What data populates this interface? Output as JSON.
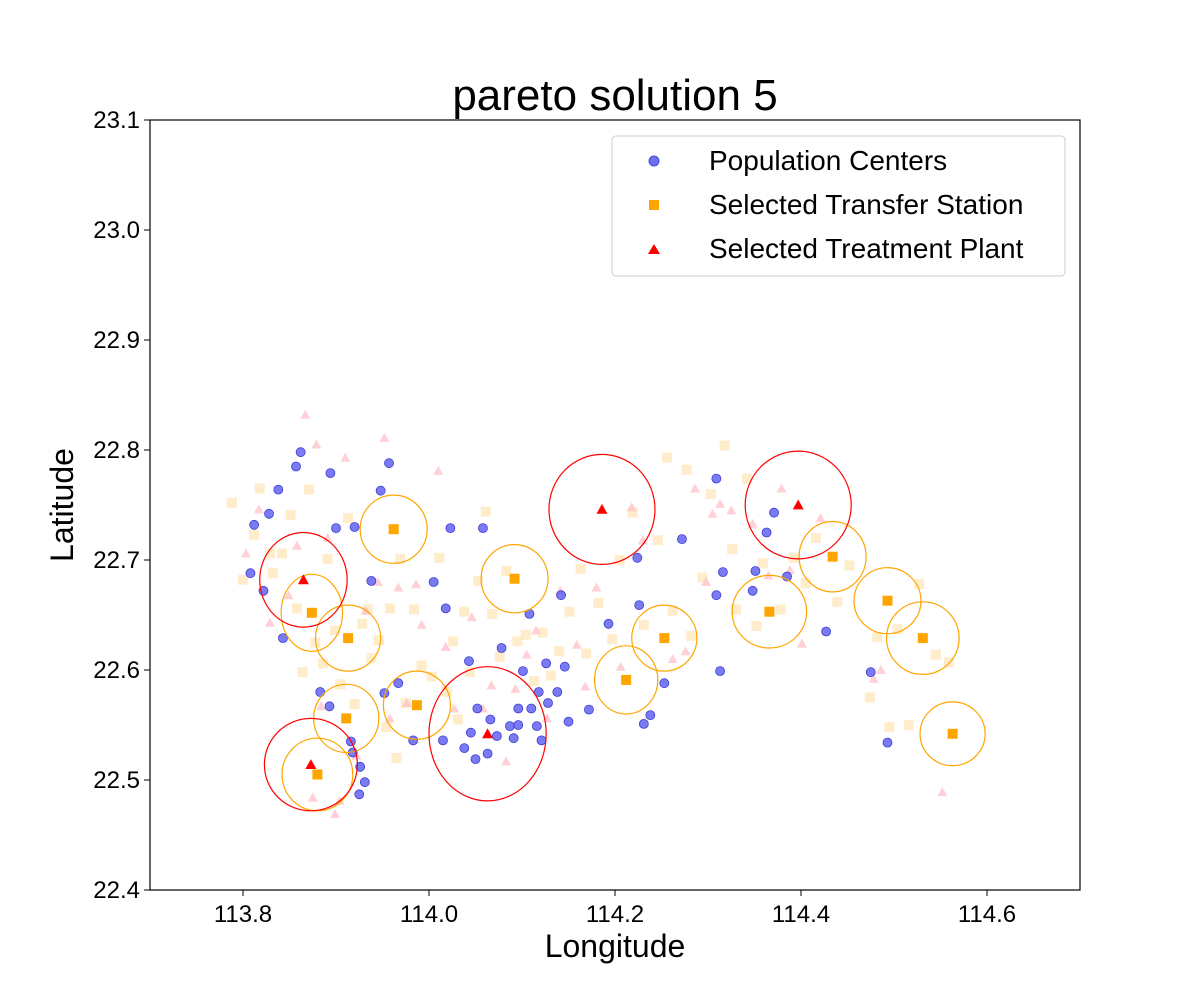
{
  "chart_data": {
    "type": "scatter",
    "title": "pareto solution 5",
    "xlabel": "Longitude",
    "ylabel": "Latitude",
    "xlim": [
      113.7,
      114.7
    ],
    "ylim": [
      22.4,
      23.1
    ],
    "xticks": [
      "113.8",
      "114.0",
      "114.2",
      "114.4",
      "114.6"
    ],
    "yticks": [
      "22.4",
      "22.5",
      "22.6",
      "22.7",
      "22.8",
      "22.9",
      "23.0",
      "23.1"
    ],
    "grid": false,
    "legend_position": "top-right",
    "legend": [
      {
        "label": "Population Centers",
        "marker": "circle",
        "color": "#6f6ff0"
      },
      {
        "label": "Selected Transfer Station",
        "marker": "square",
        "color": "#ffa500"
      },
      {
        "label": "Selected Treatment Plant",
        "marker": "triangle",
        "color": "#ff0000"
      }
    ],
    "colors": {
      "population": "#5a5aee",
      "transfer": "#ffa500",
      "plant": "#ff0000",
      "candidate_transfer": "#fde6b9",
      "candidate_plant": "#ffc0c8"
    },
    "population_centers": [
      [
        113.808,
        22.688
      ],
      [
        113.812,
        22.732
      ],
      [
        113.822,
        22.672
      ],
      [
        113.828,
        22.742
      ],
      [
        113.838,
        22.764
      ],
      [
        113.843,
        22.629
      ],
      [
        113.857,
        22.785
      ],
      [
        113.862,
        22.798
      ],
      [
        113.883,
        22.58
      ],
      [
        113.893,
        22.567
      ],
      [
        113.894,
        22.779
      ],
      [
        113.9,
        22.729
      ],
      [
        113.916,
        22.535
      ],
      [
        113.918,
        22.525
      ],
      [
        113.92,
        22.73
      ],
      [
        113.925,
        22.487
      ],
      [
        113.926,
        22.512
      ],
      [
        113.931,
        22.498
      ],
      [
        113.938,
        22.681
      ],
      [
        113.948,
        22.763
      ],
      [
        113.952,
        22.579
      ],
      [
        113.957,
        22.788
      ],
      [
        113.967,
        22.588
      ],
      [
        113.983,
        22.536
      ],
      [
        114.005,
        22.68
      ],
      [
        114.015,
        22.536
      ],
      [
        114.018,
        22.656
      ],
      [
        114.023,
        22.729
      ],
      [
        114.038,
        22.529
      ],
      [
        114.043,
        22.608
      ],
      [
        114.045,
        22.543
      ],
      [
        114.05,
        22.519
      ],
      [
        114.052,
        22.565
      ],
      [
        114.058,
        22.729
      ],
      [
        114.063,
        22.524
      ],
      [
        114.066,
        22.555
      ],
      [
        114.073,
        22.54
      ],
      [
        114.078,
        22.62
      ],
      [
        114.087,
        22.549
      ],
      [
        114.091,
        22.538
      ],
      [
        114.096,
        22.565
      ],
      [
        114.096,
        22.55
      ],
      [
        114.101,
        22.599
      ],
      [
        114.108,
        22.651
      ],
      [
        114.11,
        22.565
      ],
      [
        114.116,
        22.549
      ],
      [
        114.118,
        22.58
      ],
      [
        114.121,
        22.536
      ],
      [
        114.126,
        22.606
      ],
      [
        114.128,
        22.57
      ],
      [
        114.138,
        22.58
      ],
      [
        114.142,
        22.668
      ],
      [
        114.146,
        22.603
      ],
      [
        114.15,
        22.553
      ],
      [
        114.172,
        22.564
      ],
      [
        114.193,
        22.642
      ],
      [
        114.224,
        22.702
      ],
      [
        114.226,
        22.659
      ],
      [
        114.231,
        22.551
      ],
      [
        114.238,
        22.559
      ],
      [
        114.253,
        22.588
      ],
      [
        114.272,
        22.719
      ],
      [
        114.309,
        22.774
      ],
      [
        114.309,
        22.668
      ],
      [
        114.313,
        22.599
      ],
      [
        114.316,
        22.689
      ],
      [
        114.348,
        22.672
      ],
      [
        114.351,
        22.69
      ],
      [
        114.363,
        22.725
      ],
      [
        114.371,
        22.743
      ],
      [
        114.385,
        22.685
      ],
      [
        114.427,
        22.635
      ],
      [
        114.475,
        22.598
      ],
      [
        114.493,
        22.534
      ]
    ],
    "transfer_stations": [
      [
        113.874,
        22.652
      ],
      [
        113.88,
        22.505
      ],
      [
        113.913,
        22.629
      ],
      [
        113.911,
        22.556
      ],
      [
        113.962,
        22.728
      ],
      [
        113.987,
        22.568
      ],
      [
        114.092,
        22.683
      ],
      [
        114.212,
        22.591
      ],
      [
        114.253,
        22.629
      ],
      [
        114.366,
        22.653
      ],
      [
        114.434,
        22.703
      ],
      [
        114.493,
        22.663
      ],
      [
        114.531,
        22.629
      ],
      [
        114.563,
        22.542
      ]
    ],
    "treatment_plants": [
      [
        113.865,
        22.682
      ],
      [
        113.873,
        22.514
      ],
      [
        114.063,
        22.542
      ],
      [
        114.186,
        22.746
      ],
      [
        114.397,
        22.75
      ]
    ],
    "transfer_circle_radii": [
      [
        0.033,
        0.035
      ],
      [
        0.038,
        0.033
      ],
      [
        0.035,
        0.03
      ],
      [
        0.035,
        0.031
      ],
      [
        0.036,
        0.031
      ],
      [
        0.036,
        0.031
      ],
      [
        0.036,
        0.031
      ],
      [
        0.034,
        0.031
      ],
      [
        0.035,
        0.03
      ],
      [
        0.04,
        0.033
      ],
      [
        0.036,
        0.032
      ],
      [
        0.036,
        0.03
      ],
      [
        0.039,
        0.033
      ],
      [
        0.035,
        0.029
      ]
    ],
    "plant_circle_radii": [
      [
        0.047,
        0.043
      ],
      [
        0.05,
        0.042
      ],
      [
        0.063,
        0.061
      ],
      [
        0.057,
        0.05
      ],
      [
        0.057,
        0.049
      ]
    ],
    "candidate_transfer_sites": [
      [
        113.788,
        22.752
      ],
      [
        113.8,
        22.682
      ],
      [
        113.812,
        22.723
      ],
      [
        113.818,
        22.765
      ],
      [
        113.829,
        22.706
      ],
      [
        113.832,
        22.688
      ],
      [
        113.842,
        22.706
      ],
      [
        113.851,
        22.741
      ],
      [
        113.858,
        22.656
      ],
      [
        113.864,
        22.598
      ],
      [
        113.871,
        22.764
      ],
      [
        113.878,
        22.625
      ],
      [
        113.886,
        22.606
      ],
      [
        113.891,
        22.701
      ],
      [
        113.899,
        22.636
      ],
      [
        113.905,
        22.587
      ],
      [
        113.913,
        22.738
      ],
      [
        113.92,
        22.569
      ],
      [
        113.928,
        22.642
      ],
      [
        113.934,
        22.655
      ],
      [
        113.938,
        22.611
      ],
      [
        113.946,
        22.627
      ],
      [
        113.954,
        22.548
      ],
      [
        113.958,
        22.656
      ],
      [
        113.965,
        22.52
      ],
      [
        113.969,
        22.701
      ],
      [
        113.975,
        22.57
      ],
      [
        113.984,
        22.655
      ],
      [
        113.992,
        22.604
      ],
      [
        114.003,
        22.594
      ],
      [
        114.011,
        22.702
      ],
      [
        114.019,
        22.58
      ],
      [
        114.026,
        22.626
      ],
      [
        114.031,
        22.555
      ],
      [
        114.038,
        22.653
      ],
      [
        114.044,
        22.598
      ],
      [
        114.053,
        22.681
      ],
      [
        114.061,
        22.744
      ],
      [
        114.068,
        22.651
      ],
      [
        114.076,
        22.612
      ],
      [
        114.083,
        22.69
      ],
      [
        114.095,
        22.626
      ],
      [
        114.104,
        22.632
      ],
      [
        114.113,
        22.59
      ],
      [
        114.122,
        22.634
      ],
      [
        114.131,
        22.595
      ],
      [
        114.14,
        22.617
      ],
      [
        114.151,
        22.653
      ],
      [
        114.163,
        22.692
      ],
      [
        114.169,
        22.615
      ],
      [
        114.182,
        22.661
      ],
      [
        114.197,
        22.628
      ],
      [
        114.205,
        22.7
      ],
      [
        114.219,
        22.743
      ],
      [
        114.231,
        22.641
      ],
      [
        114.246,
        22.718
      ],
      [
        114.256,
        22.793
      ],
      [
        114.262,
        22.654
      ],
      [
        114.277,
        22.782
      ],
      [
        114.282,
        22.631
      ],
      [
        114.294,
        22.684
      ],
      [
        114.303,
        22.76
      ],
      [
        114.318,
        22.804
      ],
      [
        114.326,
        22.71
      ],
      [
        114.33,
        22.655
      ],
      [
        114.342,
        22.774
      ],
      [
        114.352,
        22.64
      ],
      [
        114.359,
        22.697
      ],
      [
        114.378,
        22.655
      ],
      [
        114.392,
        22.702
      ],
      [
        114.405,
        22.679
      ],
      [
        114.416,
        22.72
      ],
      [
        114.439,
        22.662
      ],
      [
        114.452,
        22.695
      ],
      [
        114.474,
        22.575
      ],
      [
        114.482,
        22.63
      ],
      [
        114.495,
        22.548
      ],
      [
        114.504,
        22.637
      ],
      [
        114.516,
        22.55
      ],
      [
        114.527,
        22.678
      ],
      [
        114.545,
        22.614
      ],
      [
        114.559,
        22.607
      ]
    ],
    "candidate_plant_sites": [
      [
        113.803,
        22.706
      ],
      [
        113.817,
        22.746
      ],
      [
        113.829,
        22.643
      ],
      [
        113.849,
        22.668
      ],
      [
        113.858,
        22.713
      ],
      [
        113.867,
        22.832
      ],
      [
        113.875,
        22.484
      ],
      [
        113.879,
        22.805
      ],
      [
        113.884,
        22.567
      ],
      [
        113.891,
        22.72
      ],
      [
        113.899,
        22.469
      ],
      [
        113.904,
        22.481
      ],
      [
        113.91,
        22.793
      ],
      [
        113.922,
        22.522
      ],
      [
        113.932,
        22.654
      ],
      [
        113.945,
        22.68
      ],
      [
        113.952,
        22.811
      ],
      [
        113.958,
        22.556
      ],
      [
        113.967,
        22.675
      ],
      [
        113.976,
        22.57
      ],
      [
        113.986,
        22.678
      ],
      [
        113.992,
        22.641
      ],
      [
        114.01,
        22.781
      ],
      [
        114.018,
        22.621
      ],
      [
        114.027,
        22.565
      ],
      [
        114.046,
        22.648
      ],
      [
        114.058,
        22.565
      ],
      [
        114.067,
        22.586
      ],
      [
        114.083,
        22.517
      ],
      [
        114.093,
        22.583
      ],
      [
        114.105,
        22.614
      ],
      [
        114.115,
        22.636
      ],
      [
        114.127,
        22.556
      ],
      [
        114.141,
        22.672
      ],
      [
        114.159,
        22.623
      ],
      [
        114.168,
        22.585
      ],
      [
        114.18,
        22.675
      ],
      [
        114.206,
        22.603
      ],
      [
        114.218,
        22.748
      ],
      [
        114.23,
        22.718
      ],
      [
        114.262,
        22.61
      ],
      [
        114.276,
        22.617
      ],
      [
        114.286,
        22.765
      ],
      [
        114.298,
        22.68
      ],
      [
        114.305,
        22.742
      ],
      [
        114.313,
        22.751
      ],
      [
        114.325,
        22.745
      ],
      [
        114.348,
        22.733
      ],
      [
        114.365,
        22.686
      ],
      [
        114.379,
        22.765
      ],
      [
        114.388,
        22.691
      ],
      [
        114.401,
        22.624
      ],
      [
        114.421,
        22.738
      ],
      [
        114.478,
        22.592
      ],
      [
        114.486,
        22.6
      ],
      [
        114.552,
        22.489
      ]
    ]
  }
}
